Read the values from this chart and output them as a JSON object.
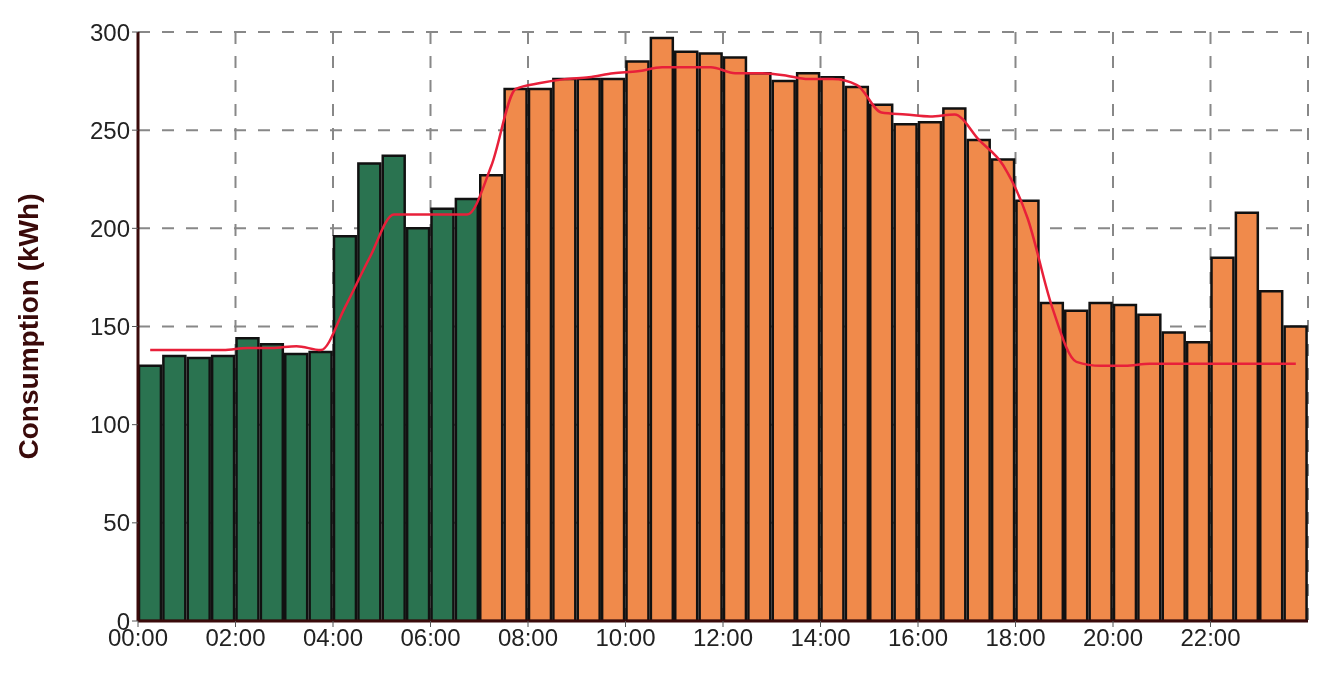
{
  "chart_data": {
    "type": "bar",
    "ylabel": "Consumption (kWh)",
    "x": [
      0.25,
      0.75,
      1.25,
      1.75,
      2.25,
      2.75,
      3.25,
      3.75,
      4.25,
      4.75,
      5.25,
      5.75,
      6.25,
      6.75,
      7.25,
      7.75,
      8.25,
      8.75,
      9.25,
      9.75,
      10.25,
      10.75,
      11.25,
      11.75,
      12.25,
      12.75,
      13.25,
      13.75,
      14.25,
      14.75,
      15.25,
      15.75,
      16.25,
      16.75,
      17.25,
      17.75,
      18.25,
      18.75,
      19.25,
      19.75,
      20.25,
      20.75,
      21.25,
      21.75,
      22.25,
      22.75,
      23.25,
      23.75
    ],
    "series": [
      {
        "colors": [
          "#2a7350",
          "#2a7350",
          "#2a7350",
          "#2a7350",
          "#2a7350",
          "#2a7350",
          "#2a7350",
          "#2a7350",
          "#2a7350",
          "#2a7350",
          "#2a7350",
          "#2a7350",
          "#2a7350",
          "#2a7350",
          "#f08a4b",
          "#f08a4b",
          "#f08a4b",
          "#f08a4b",
          "#f08a4b",
          "#f08a4b",
          "#f08a4b",
          "#f08a4b",
          "#f08a4b",
          "#f08a4b",
          "#f08a4b",
          "#f08a4b",
          "#f08a4b",
          "#f08a4b",
          "#f08a4b",
          "#f08a4b",
          "#f08a4b",
          "#f08a4b",
          "#f08a4b",
          "#f08a4b",
          "#f08a4b",
          "#f08a4b",
          "#f08a4b",
          "#f08a4b",
          "#f08a4b",
          "#f08a4b",
          "#f08a4b",
          "#f08a4b",
          "#f08a4b",
          "#f08a4b",
          "#f08a4b",
          "#f08a4b",
          "#f08a4b",
          "#f08a4b"
        ],
        "values": [
          130,
          135,
          134,
          135,
          144,
          141,
          136,
          137,
          196,
          233,
          237,
          200,
          210,
          215,
          227,
          271,
          271,
          276,
          276,
          276,
          285,
          297,
          290,
          289,
          287,
          279,
          275,
          279,
          277,
          272,
          263,
          253,
          254,
          261,
          245,
          235,
          214,
          162,
          158,
          162,
          161,
          156,
          147,
          142,
          185,
          208,
          168,
          150
        ]
      },
      {
        "type": "line",
        "color": "#e8203a",
        "values": [
          138,
          138,
          138,
          138,
          139,
          139,
          140,
          138,
          160,
          185,
          207,
          207,
          207,
          207,
          232,
          271,
          274,
          276,
          277,
          279,
          280,
          282,
          282,
          282,
          279,
          279,
          278,
          276,
          276,
          273,
          259,
          258,
          257,
          258,
          245,
          232,
          205,
          160,
          132,
          130,
          130,
          131,
          131,
          131,
          131,
          131,
          131,
          131
        ]
      }
    ],
    "xlim": [
      0,
      24
    ],
    "xticks": [
      {
        "value": 0,
        "label": "00:00"
      },
      {
        "value": 2,
        "label": "02:00"
      },
      {
        "value": 4,
        "label": "04:00"
      },
      {
        "value": 6,
        "label": "06:00"
      },
      {
        "value": 8,
        "label": "08:00"
      },
      {
        "value": 10,
        "label": "10:00"
      },
      {
        "value": 12,
        "label": "12:00"
      },
      {
        "value": 14,
        "label": "14:00"
      },
      {
        "value": 16,
        "label": "16:00"
      },
      {
        "value": 18,
        "label": "18:00"
      },
      {
        "value": 20,
        "label": "20:00"
      },
      {
        "value": 22,
        "label": "22:00"
      }
    ],
    "ylim": [
      0,
      300
    ],
    "yticks": [
      0,
      50,
      100,
      150,
      200,
      250,
      300
    ],
    "grid": true
  }
}
